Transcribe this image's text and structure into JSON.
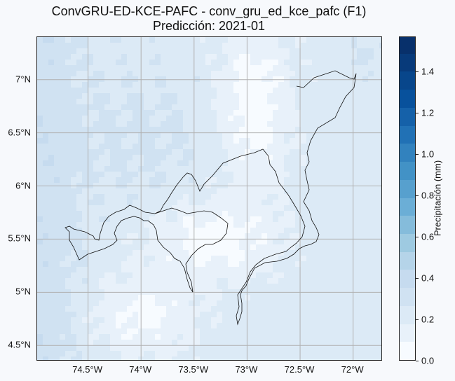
{
  "title_line1": "ConvGRU-ED-KCE-PAFC - conv_gru_ed_kce_pafc (F1)",
  "title_line2": "Predicción: 2021-01",
  "x_ticks": [
    {
      "lon": -74.5,
      "label": "74.5°W"
    },
    {
      "lon": -74.0,
      "label": "74°W"
    },
    {
      "lon": -73.5,
      "label": "73.5°W"
    },
    {
      "lon": -73.0,
      "label": "73°W"
    },
    {
      "lon": -72.5,
      "label": "72.5°W"
    },
    {
      "lon": -72.0,
      "label": "72°W"
    }
  ],
  "y_ticks": [
    {
      "lat": 4.5,
      "label": "4.5°N"
    },
    {
      "lat": 5.0,
      "label": "5°N"
    },
    {
      "lat": 5.5,
      "label": "5.5°N"
    },
    {
      "lat": 6.0,
      "label": "6°N"
    },
    {
      "lat": 6.5,
      "label": "6.5°N"
    },
    {
      "lat": 7.0,
      "label": "7°N"
    }
  ],
  "map_extent": {
    "lon_min": -74.98,
    "lon_max": -71.72,
    "lat_min": 4.35,
    "lat_max": 7.4
  },
  "colorbar": {
    "label": "Precipitación (mm)",
    "min": 0.0,
    "max": 1.57,
    "ticks": [
      "0.0",
      "0.2",
      "0.4",
      "0.6",
      "0.8",
      "1.0",
      "1.2",
      "1.4"
    ],
    "colors": [
      "#f7fbff",
      "#e8f1fa",
      "#dceaf6",
      "#d0e2f2",
      "#c6dbef",
      "#b5d4e9",
      "#9ecae1",
      "#85bcdb",
      "#6baed6",
      "#57a0ce",
      "#4292c6",
      "#3282be",
      "#2171b5",
      "#1561a9",
      "#08519c",
      "#08468b",
      "#083a7a",
      "#08306b"
    ]
  },
  "chart_data": {
    "type": "heatmap",
    "title": "ConvGRU-ED-KCE-PAFC - conv_gru_ed_kce_pafc (F1)\nPredicción: 2021-01",
    "colorbar_label": "Precipitación (mm)",
    "colorbar_range": [
      0.0,
      1.57
    ],
    "grid": true,
    "precip_regions": [
      {
        "region": "west edge",
        "value": 0.35
      },
      {
        "region": "north-west",
        "value": 0.3
      },
      {
        "region": "north-east corner",
        "value": 0.33
      },
      {
        "region": "central-west",
        "value": 0.25
      },
      {
        "region": "central valley",
        "value": 0.05
      },
      {
        "region": "south-west",
        "value": 0.08
      },
      {
        "region": "south-east",
        "value": 0.28
      },
      {
        "region": "east",
        "value": 0.22
      }
    ]
  }
}
